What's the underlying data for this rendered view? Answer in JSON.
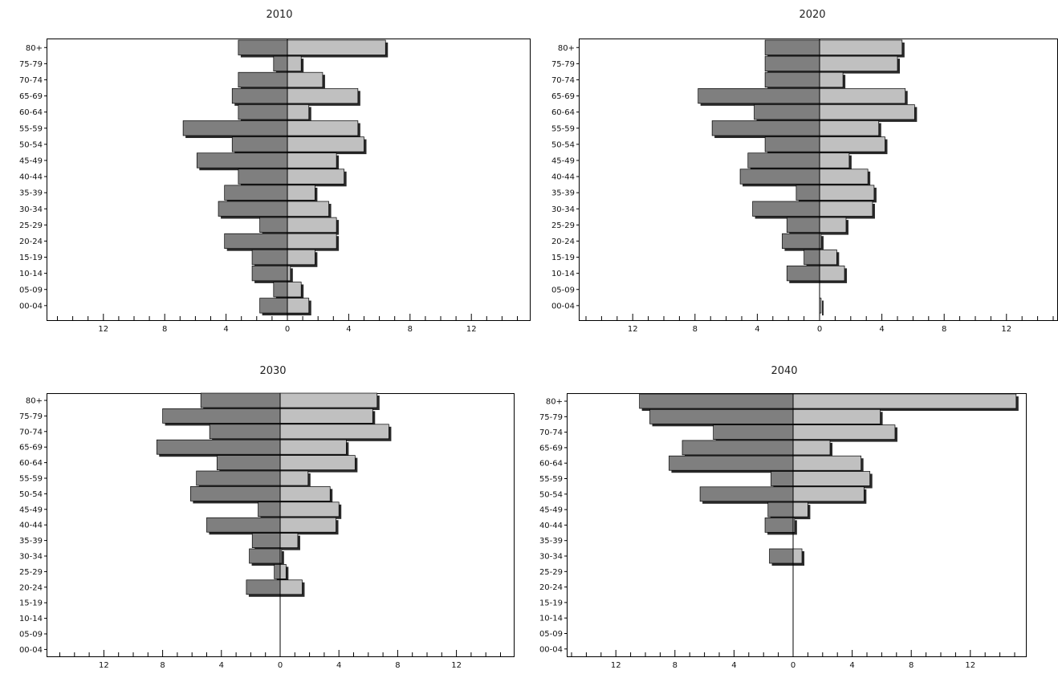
{
  "colors": {
    "male_fill": "#7f7f7f",
    "female_fill": "#c0c0c0",
    "bar_shadow": "#2a2a2a",
    "frame": "#000000",
    "background": "#ffffff"
  },
  "chart_data": [
    {
      "type": "bar",
      "orientation": "horizontal-population-pyramid",
      "title": "2010",
      "categories": [
        "80+",
        "75-79",
        "70-74",
        "65-69",
        "60-64",
        "55-59",
        "50-54",
        "45-49",
        "40-44",
        "35-39",
        "30-34",
        "25-29",
        "20-24",
        "15-19",
        "10-14",
        "05-09",
        "00-04"
      ],
      "xticks": [
        12,
        8,
        4,
        0,
        4,
        8,
        12
      ],
      "xlim": [
        -15.5,
        15.5
      ],
      "series": [
        {
          "values": [
            -3.2,
            -0.9,
            -3.2,
            -3.6,
            -3.2,
            -6.8,
            -3.6,
            -5.9,
            -3.2,
            -4.1,
            -4.5,
            -1.8,
            -4.1,
            -2.3,
            -2.3,
            -0.9,
            -1.8
          ]
        },
        {
          "values": [
            6.4,
            0.9,
            2.3,
            4.6,
            1.4,
            4.6,
            5.0,
            3.2,
            3.7,
            1.8,
            2.7,
            3.2,
            3.2,
            1.8,
            0.2,
            0.9,
            1.4
          ]
        }
      ]
    },
    {
      "type": "bar",
      "orientation": "horizontal-population-pyramid",
      "title": "2020",
      "categories": [
        "80+",
        "75-79",
        "70-74",
        "65-69",
        "60-64",
        "55-59",
        "50-54",
        "45-49",
        "40-44",
        "35-39",
        "30-34",
        "25-29",
        "20-24",
        "15-19",
        "10-14",
        "05-09",
        "00-04"
      ],
      "xticks": [
        12,
        8,
        4,
        0,
        4,
        8,
        12
      ],
      "xlim": [
        -15.5,
        15.5
      ],
      "series": [
        {
          "values": [
            -3.5,
            -3.5,
            -3.5,
            -7.8,
            -4.2,
            -6.9,
            -3.5,
            -4.6,
            -5.1,
            -1.5,
            -4.3,
            -2.1,
            -2.4,
            -1.0,
            -2.1,
            0,
            0
          ]
        },
        {
          "values": [
            5.3,
            5.0,
            1.5,
            5.5,
            6.1,
            3.8,
            4.2,
            1.9,
            3.1,
            3.5,
            3.4,
            1.7,
            0.1,
            1.1,
            1.6,
            0,
            0.1
          ]
        }
      ]
    },
    {
      "type": "bar",
      "orientation": "horizontal-population-pyramid",
      "title": "2030",
      "categories": [
        "80+",
        "75-79",
        "70-74",
        "65-69",
        "60-64",
        "55-59",
        "50-54",
        "45-49",
        "40-44",
        "35-39",
        "30-34",
        "25-29",
        "20-24",
        "15-19",
        "10-14",
        "05-09",
        "00-04"
      ],
      "xticks": [
        12,
        8,
        4,
        0,
        4,
        8,
        12
      ],
      "xlim": [
        -15.5,
        15.5
      ],
      "series": [
        {
          "values": [
            -5.4,
            -8.0,
            -4.8,
            -8.4,
            -4.3,
            -5.7,
            -6.1,
            -1.5,
            -5.0,
            -1.9,
            -2.1,
            -0.4,
            -2.3,
            0,
            0,
            0,
            0
          ]
        },
        {
          "values": [
            6.6,
            6.3,
            7.4,
            4.5,
            5.1,
            1.9,
            3.4,
            4.0,
            3.8,
            1.2,
            0.1,
            0.4,
            1.5,
            0,
            0,
            0,
            0
          ]
        }
      ]
    },
    {
      "type": "bar",
      "orientation": "horizontal-population-pyramid",
      "title": "2040",
      "categories": [
        "80+",
        "75-79",
        "70-74",
        "65-69",
        "60-64",
        "55-59",
        "50-54",
        "45-49",
        "40-44",
        "35-39",
        "30-34",
        "25-29",
        "20-24",
        "15-19",
        "10-14",
        "05-09",
        "00-04"
      ],
      "xticks": [
        12,
        8,
        4,
        0,
        4,
        8,
        12
      ],
      "xlim": [
        -15.5,
        15.5
      ],
      "series": [
        {
          "values": [
            -10.4,
            -9.7,
            -5.4,
            -7.5,
            -8.4,
            -1.5,
            -6.3,
            -1.7,
            -1.9,
            0,
            -1.6,
            0,
            0,
            0,
            0,
            0,
            0
          ]
        },
        {
          "values": [
            15.1,
            5.9,
            6.9,
            2.5,
            4.6,
            5.2,
            4.8,
            1.0,
            0.1,
            0,
            0.6,
            0,
            0,
            0,
            0,
            0,
            0
          ]
        }
      ]
    }
  ]
}
